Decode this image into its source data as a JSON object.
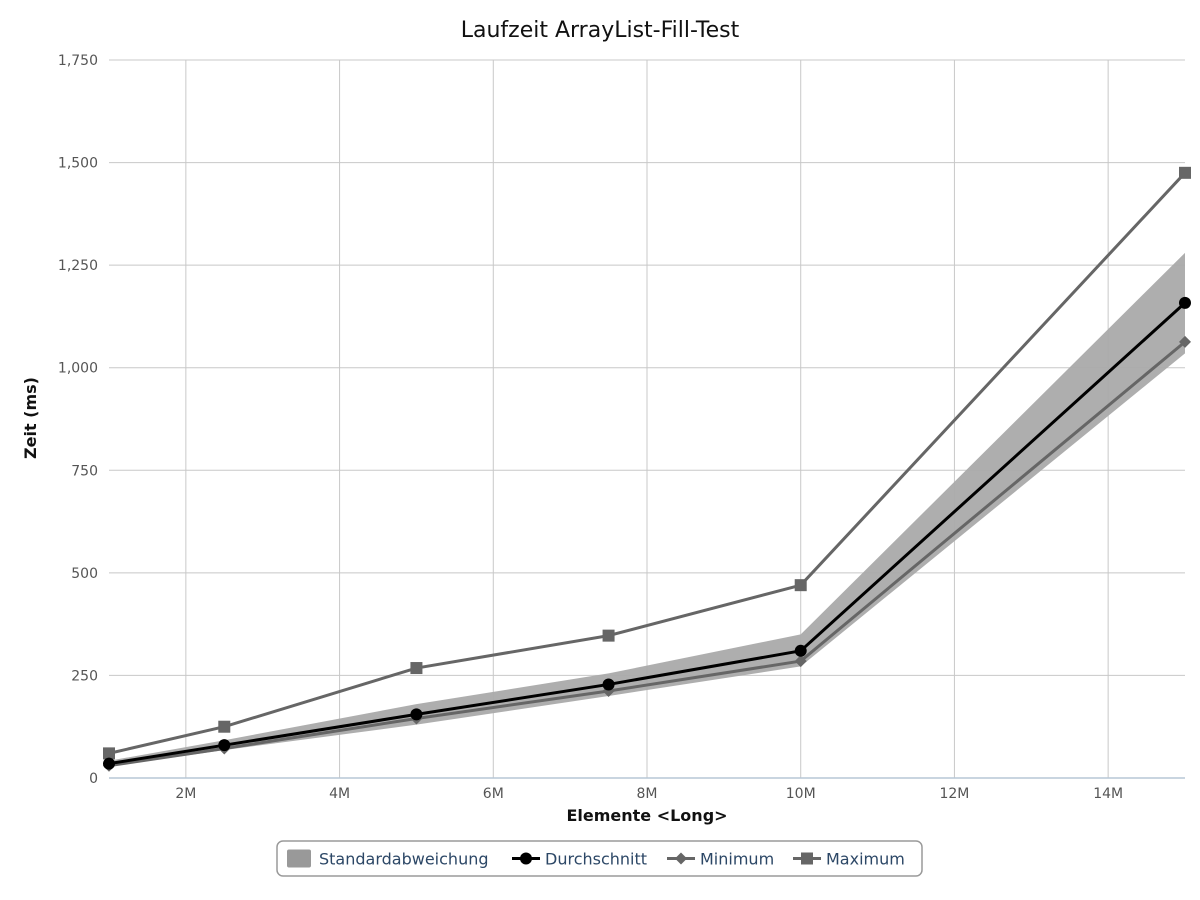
{
  "chart_data": {
    "type": "line",
    "title": "Laufzeit ArrayList-Fill-Test",
    "xlabel": "Elemente <Long>",
    "ylabel": "Zeit (ms)",
    "xlim": [
      1000000,
      15000000
    ],
    "ylim": [
      0,
      1750
    ],
    "x_ticks": [
      2000000,
      4000000,
      6000000,
      8000000,
      10000000,
      12000000,
      14000000
    ],
    "x_tick_labels": [
      "2M",
      "4M",
      "6M",
      "8M",
      "10M",
      "12M",
      "14M"
    ],
    "y_ticks": [
      0,
      250,
      500,
      750,
      1000,
      1250,
      1500,
      1750
    ],
    "y_tick_labels": [
      "0",
      "250",
      "500",
      "750",
      "1,000",
      "1,250",
      "1,500",
      "1,750"
    ],
    "grid": true,
    "legend_position": "bottom-center",
    "x": [
      1000000,
      2500000,
      5000000,
      7500000,
      10000000,
      15000000
    ],
    "band": {
      "name": "Standardabweichung",
      "color": "#aaaaaa",
      "lower": [
        28,
        68,
        130,
        200,
        272,
        1035
      ],
      "upper": [
        42,
        92,
        180,
        255,
        350,
        1280
      ]
    },
    "series": [
      {
        "name": "Durchschnitt",
        "color": "#000000",
        "marker": "circle",
        "values": [
          35,
          80,
          155,
          228,
          310,
          1158
        ]
      },
      {
        "name": "Minimum",
        "color": "#666666",
        "marker": "diamond",
        "values": [
          30,
          72,
          145,
          212,
          285,
          1063
        ]
      },
      {
        "name": "Maximum",
        "color": "#666666",
        "marker": "square",
        "values": [
          60,
          125,
          268,
          347,
          470,
          1475
        ]
      }
    ]
  }
}
